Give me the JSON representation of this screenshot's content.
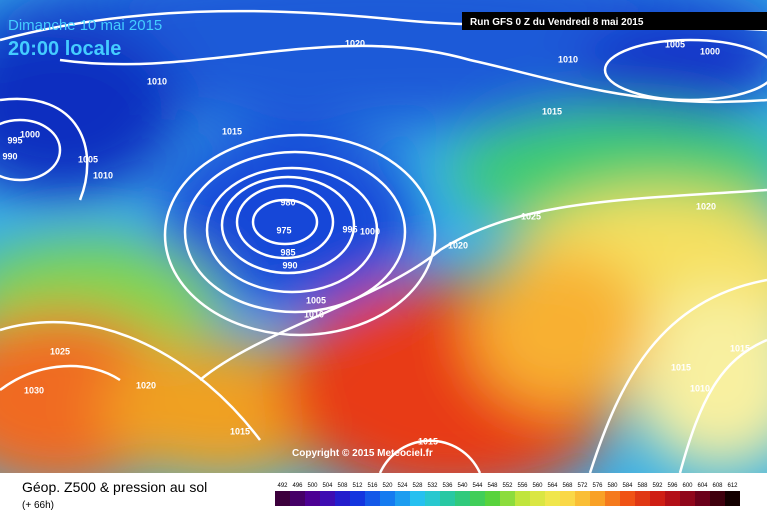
{
  "header": {
    "date": "Dimanche 10 mai 2015",
    "time": "20:00 locale",
    "run": "Run GFS 0 Z du Vendredi 8 mai 2015"
  },
  "isobar_labels": [
    1020,
    1005,
    1000,
    1010,
    1010,
    1015,
    995,
    1000,
    990,
    1015,
    1005,
    1010,
    980,
    975,
    995,
    1000,
    985,
    990,
    1020,
    1025,
    1020,
    1005,
    1010,
    1025,
    1030,
    1020,
    1015,
    1015,
    1010,
    1015,
    1015
  ],
  "copyright": "Copyright © 2015 Meteociel.fr",
  "footer": {
    "title": "Géop. Z500 & pression au sol",
    "lead": "(+ 66h)"
  },
  "scale_labels": [
    492,
    496,
    500,
    504,
    508,
    512,
    516,
    520,
    524,
    528,
    532,
    536,
    540,
    544,
    548,
    552,
    556,
    560,
    564,
    568,
    572,
    576,
    580,
    584,
    588,
    592,
    596,
    600,
    604,
    608,
    612
  ]
}
